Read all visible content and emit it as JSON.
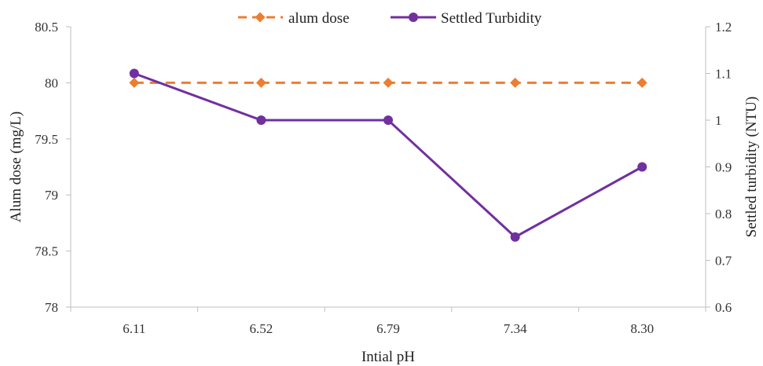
{
  "chart_data": {
    "type": "line",
    "categories": [
      "6.11",
      "6.52",
      "6.79",
      "7.34",
      "8.30"
    ],
    "xlabel": "Intial pH",
    "ylabel_left": "Alum dose (mg/L)",
    "ylabel_right": "Settled turbidity (NTU)",
    "ylim_left": [
      78,
      80.5
    ],
    "ylim_right": [
      0.6,
      1.2
    ],
    "yticks_left": [
      "78",
      "78.5",
      "79",
      "79.5",
      "80",
      "80.5"
    ],
    "yticks_right": [
      "0.6",
      "0.7",
      "0.8",
      "0.9",
      "1",
      "1.1",
      "1.2"
    ],
    "grid": false,
    "legend_position": "top",
    "series": [
      {
        "name": "alum dose",
        "axis": "left",
        "values": [
          80,
          80,
          80,
          80,
          80
        ],
        "color": "#ED7D31",
        "marker": "diamond",
        "line_style": "dashed"
      },
      {
        "name": "Settled Turbidity",
        "axis": "right",
        "values": [
          1.1,
          1.0,
          1.0,
          0.75,
          0.9
        ],
        "color": "#7030A0",
        "marker": "circle",
        "line_style": "solid"
      }
    ]
  }
}
